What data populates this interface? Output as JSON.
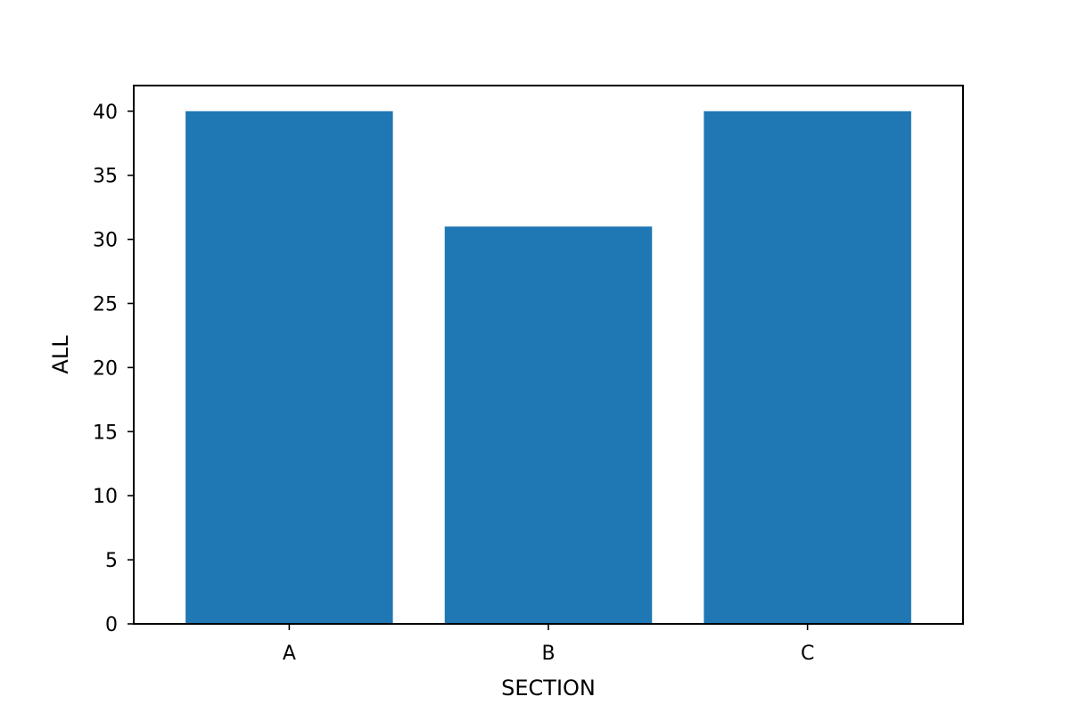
{
  "chart_data": {
    "type": "bar",
    "categories": [
      "A",
      "B",
      "C"
    ],
    "values": [
      40,
      31,
      40
    ],
    "xlabel": "SECTION",
    "ylabel": "ALL",
    "ylim": [
      0,
      42
    ],
    "yticks": [
      0,
      5,
      10,
      15,
      20,
      25,
      30,
      35,
      40
    ],
    "grid": false,
    "bar_color": "#1f77b4",
    "axis_color": "#000000",
    "background_color": "#ffffff"
  }
}
